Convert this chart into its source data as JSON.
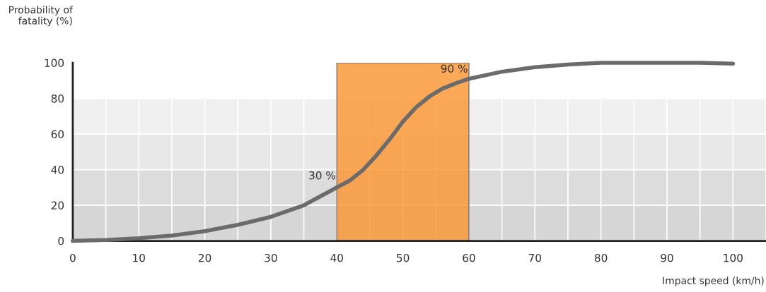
{
  "chart_data": {
    "type": "line",
    "xlabel": "Impact speed (km/h)",
    "ylabel": "Probability of\nfatality (%)",
    "x": [
      0,
      5,
      10,
      15,
      20,
      25,
      30,
      35,
      40,
      42,
      44,
      46,
      48,
      50,
      52,
      54,
      56,
      58,
      60,
      65,
      70,
      75,
      80,
      85,
      90,
      95,
      100
    ],
    "series": [
      {
        "color": "#6b6b6b",
        "values": [
          0,
          0.5,
          1.5,
          3,
          5.5,
          9,
          13.5,
          20,
          30,
          34,
          40,
          48,
          57,
          67,
          75,
          81,
          85.5,
          88.5,
          91,
          95,
          97.5,
          99,
          100,
          100,
          100,
          100,
          99.5
        ]
      }
    ],
    "xlim": [
      0,
      105
    ],
    "ylim": [
      0,
      100
    ],
    "xticks": [
      0,
      {
        "value": 5,
        "label": null
      },
      10,
      {
        "value": 15,
        "label": null
      },
      20,
      {
        "value": 25,
        "label": null
      },
      30,
      {
        "value": 35,
        "label": null
      },
      40,
      {
        "value": 45,
        "label": null
      },
      50,
      {
        "value": 55,
        "label": null
      },
      60,
      {
        "value": 65,
        "label": null
      },
      70,
      {
        "value": 75,
        "label": null
      },
      80,
      {
        "value": 85,
        "label": null
      },
      90,
      {
        "value": 95,
        "label": null
      },
      100
    ],
    "yticks": [
      0,
      20,
      40,
      60,
      80,
      100
    ],
    "bands": [
      {
        "axis": "y",
        "from": 0,
        "to": 20,
        "color": "#d6d6d6"
      },
      {
        "axis": "y",
        "from": 20,
        "to": 40,
        "color": "#dcdcdc"
      },
      {
        "axis": "y",
        "from": 40,
        "to": 60,
        "color": "#e8e8e8"
      },
      {
        "axis": "y",
        "from": 60,
        "to": 80,
        "color": "#f0f0f0"
      },
      {
        "axis": "x",
        "from": 40,
        "to": 60,
        "color": "#fb9633"
      }
    ],
    "annotations": [
      {
        "text": "30 %",
        "x": 40,
        "y": 30
      },
      {
        "text": "90 %",
        "x": 60,
        "y": 90
      }
    ],
    "grid": true,
    "marker": "none",
    "line_style": "solid",
    "legend": false
  }
}
